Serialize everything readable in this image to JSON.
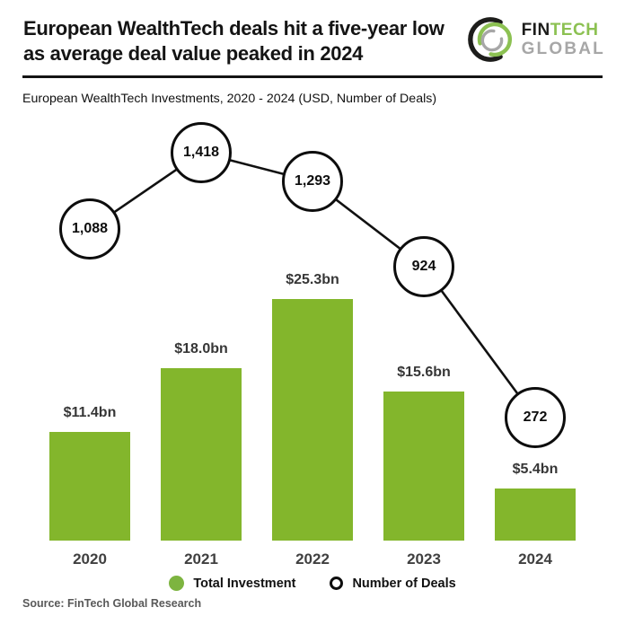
{
  "header": {
    "title_line1": "European WealthTech deals hit a five-year low",
    "title_line2": "as average deal value peaked in 2024",
    "logo": {
      "fin": "FIN",
      "tech": "TECH",
      "global": "GLOBAL"
    }
  },
  "subtitle": "European WealthTech Investments, 2020 - 2024 (USD, Number of Deals)",
  "legend": {
    "total_investment": "Total Investment",
    "number_of_deals": "Number of Deals"
  },
  "source": "Source: FinTech Global Research",
  "colors": {
    "bar_green": "#83b62c",
    "legend_dot_green": "#7db440",
    "deal_line_black": "#111111",
    "logo_green": "#8cc152",
    "logo_gray": "#a7a7a7",
    "logo_black": "#1d1d1b"
  },
  "chart_data": {
    "type": "bar+line",
    "title": "European WealthTech Investments, 2020 - 2024 (USD, Number of Deals)",
    "categories": [
      "2020",
      "2021",
      "2022",
      "2023",
      "2024"
    ],
    "series": [
      {
        "name": "Total Investment",
        "type": "bar",
        "unit": "USD bn",
        "values": [
          11.4,
          18.0,
          25.3,
          15.6,
          5.4
        ],
        "labels": [
          "$11.4bn",
          "$18.0bn",
          "$25.3bn",
          "$15.6bn",
          "$5.4bn"
        ]
      },
      {
        "name": "Number of Deals",
        "type": "line",
        "values": [
          1088,
          1418,
          1293,
          924,
          272
        ],
        "labels": [
          "1,088",
          "1,418",
          "1,293",
          "924",
          "272"
        ]
      }
    ],
    "legend_position": "bottom",
    "grid": false,
    "value_axis_visible": false
  }
}
